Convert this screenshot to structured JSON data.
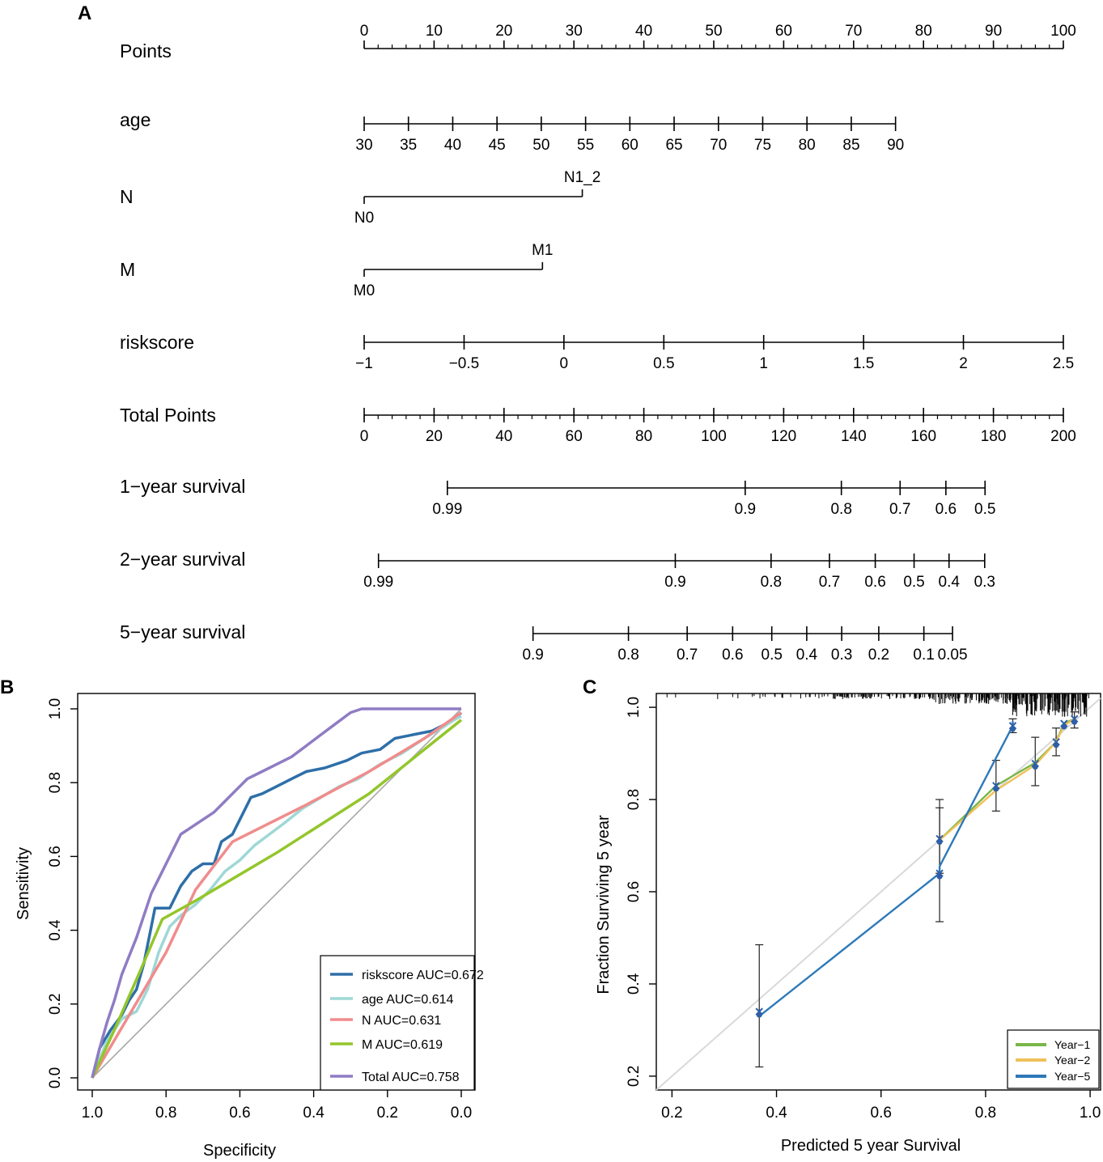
{
  "panels": {
    "A": "A",
    "B": "B",
    "C": "C"
  },
  "chart_data": [
    {
      "type": "nomogram",
      "panel": "A",
      "rows": [
        {
          "label": "Points",
          "scale": "points",
          "ticks": [
            "0",
            "10",
            "20",
            "30",
            "40",
            "50",
            "60",
            "70",
            "80",
            "90",
            "100"
          ],
          "minor_step": 2,
          "tick_position": "above"
        },
        {
          "label": "age",
          "ticks": [
            "30",
            "35",
            "40",
            "45",
            "50",
            "55",
            "60",
            "65",
            "70",
            "75",
            "80",
            "85",
            "90"
          ],
          "tick_points": [
            0,
            6.33,
            12.67,
            19,
            25.33,
            31.67,
            38,
            44.33,
            50.67,
            57,
            63.33,
            69.67,
            76
          ],
          "tick_position": "below"
        },
        {
          "label": "N",
          "ticks": [
            "N0",
            "N1_2"
          ],
          "tick_points": [
            0,
            31.2
          ],
          "alternate": true
        },
        {
          "label": "M",
          "ticks": [
            "M0",
            "M1"
          ],
          "tick_points": [
            0,
            25.5
          ],
          "alternate": true
        },
        {
          "label": "riskscore",
          "ticks": [
            "−1",
            "−0.5",
            "0",
            "0.5",
            "1",
            "1.5",
            "2",
            "2.5"
          ],
          "tick_points": [
            0,
            14.29,
            28.57,
            42.86,
            57.14,
            71.43,
            85.71,
            100
          ],
          "tick_position": "below"
        },
        {
          "label": "Total Points",
          "scale": "total",
          "ticks": [
            "0",
            "20",
            "40",
            "60",
            "80",
            "100",
            "120",
            "140",
            "160",
            "180",
            "200"
          ],
          "minor_step": 4,
          "tick_position": "below"
        },
        {
          "label": "1−year survival",
          "ticks": [
            "0.99",
            "0.9",
            "0.8",
            "0.7",
            "0.6",
            "0.5"
          ],
          "tick_total_points": [
            23.8,
            109,
            136.5,
            153.3,
            166.4,
            177.6
          ]
        },
        {
          "label": "2−year survival",
          "ticks": [
            "0.99",
            "0.9",
            "0.8",
            "0.7",
            "0.6",
            "0.5",
            "0.4",
            "0.3"
          ],
          "tick_total_points": [
            4.1,
            89,
            116.4,
            133.1,
            146.2,
            157.3,
            167.3,
            177.5
          ]
        },
        {
          "label": "5−year survival",
          "ticks": [
            "0.9",
            "0.8",
            "0.7",
            "0.6",
            "0.5",
            "0.4",
            "0.3",
            "0.2",
            "0.1",
            "0.05"
          ],
          "tick_total_points": [
            48.3,
            75.6,
            92.4,
            105.4,
            116.6,
            126.6,
            136.6,
            147.2,
            160.1,
            168.3
          ]
        }
      ]
    },
    {
      "type": "line",
      "panel": "B",
      "xlabel": "Specificity",
      "ylabel": "Sensitivity",
      "xlim": [
        1.0,
        0.0
      ],
      "ylim": [
        0.0,
        1.0
      ],
      "xticks": [
        "1.0",
        "0.8",
        "0.6",
        "0.4",
        "0.2",
        "0.0"
      ],
      "yticks": [
        "0.0",
        "0.2",
        "0.4",
        "0.6",
        "0.8",
        "1.0"
      ],
      "legend_position": "bottom-right",
      "diagonal": true,
      "series": [
        {
          "name": "riskscore AUC=0.672",
          "color": "#2e6fa8",
          "points": [
            [
              1,
              0
            ],
            [
              0.98,
              0.08
            ],
            [
              0.95,
              0.13
            ],
            [
              0.92,
              0.17
            ],
            [
              0.9,
              0.21
            ],
            [
              0.88,
              0.24
            ],
            [
              0.86,
              0.31
            ],
            [
              0.84,
              0.41
            ],
            [
              0.83,
              0.46
            ],
            [
              0.79,
              0.46
            ],
            [
              0.76,
              0.52
            ],
            [
              0.73,
              0.56
            ],
            [
              0.7,
              0.58
            ],
            [
              0.67,
              0.58
            ],
            [
              0.65,
              0.64
            ],
            [
              0.62,
              0.66
            ],
            [
              0.6,
              0.7
            ],
            [
              0.57,
              0.76
            ],
            [
              0.54,
              0.77
            ],
            [
              0.5,
              0.79
            ],
            [
              0.46,
              0.81
            ],
            [
              0.42,
              0.83
            ],
            [
              0.37,
              0.84
            ],
            [
              0.31,
              0.86
            ],
            [
              0.27,
              0.88
            ],
            [
              0.22,
              0.89
            ],
            [
              0.18,
              0.92
            ],
            [
              0.13,
              0.93
            ],
            [
              0.08,
              0.94
            ],
            [
              0.04,
              0.96
            ],
            [
              0.02,
              0.97
            ],
            [
              0,
              0.99
            ]
          ]
        },
        {
          "name": "age AUC=0.614",
          "color": "#9ed8d6",
          "points": [
            [
              1,
              0
            ],
            [
              0.96,
              0.1
            ],
            [
              0.92,
              0.16
            ],
            [
              0.88,
              0.18
            ],
            [
              0.85,
              0.24
            ],
            [
              0.82,
              0.34
            ],
            [
              0.79,
              0.41
            ],
            [
              0.76,
              0.44
            ],
            [
              0.72,
              0.47
            ],
            [
              0.68,
              0.51
            ],
            [
              0.64,
              0.56
            ],
            [
              0.6,
              0.59
            ],
            [
              0.56,
              0.63
            ],
            [
              0.52,
              0.66
            ],
            [
              0.48,
              0.69
            ],
            [
              0.43,
              0.73
            ],
            [
              0.38,
              0.76
            ],
            [
              0.33,
              0.79
            ],
            [
              0.28,
              0.81
            ],
            [
              0.22,
              0.85
            ],
            [
              0.16,
              0.88
            ],
            [
              0.1,
              0.92
            ],
            [
              0.05,
              0.95
            ],
            [
              0.02,
              0.97
            ],
            [
              0,
              0.98
            ]
          ]
        },
        {
          "name": "N AUC=0.631",
          "color": "#f08c8c",
          "points": [
            [
              1,
              0
            ],
            [
              0.9,
              0.17
            ],
            [
              0.8,
              0.34
            ],
            [
              0.72,
              0.51
            ],
            [
              0.62,
              0.64
            ],
            [
              0.42,
              0.74
            ],
            [
              0.25,
              0.83
            ],
            [
              0.1,
              0.92
            ],
            [
              0,
              0.99
            ]
          ]
        },
        {
          "name": "M AUC=0.619",
          "color": "#93c62b",
          "points": [
            [
              1,
              0
            ],
            [
              0.94,
              0.13
            ],
            [
              0.87,
              0.29
            ],
            [
              0.81,
              0.43
            ],
            [
              0.72,
              0.48
            ],
            [
              0.5,
              0.61
            ],
            [
              0.25,
              0.77
            ],
            [
              0,
              0.97
            ]
          ]
        },
        {
          "name": "Total AUC=0.758",
          "color": "#8f7cc4",
          "points": [
            [
              1,
              0
            ],
            [
              0.98,
              0.08
            ],
            [
              0.96,
              0.15
            ],
            [
              0.94,
              0.21
            ],
            [
              0.92,
              0.28
            ],
            [
              0.9,
              0.33
            ],
            [
              0.88,
              0.38
            ],
            [
              0.86,
              0.44
            ],
            [
              0.84,
              0.5
            ],
            [
              0.82,
              0.54
            ],
            [
              0.8,
              0.58
            ],
            [
              0.78,
              0.62
            ],
            [
              0.76,
              0.66
            ],
            [
              0.73,
              0.68
            ],
            [
              0.7,
              0.7
            ],
            [
              0.67,
              0.72
            ],
            [
              0.64,
              0.75
            ],
            [
              0.61,
              0.78
            ],
            [
              0.58,
              0.81
            ],
            [
              0.54,
              0.83
            ],
            [
              0.5,
              0.85
            ],
            [
              0.46,
              0.87
            ],
            [
              0.42,
              0.9
            ],
            [
              0.38,
              0.93
            ],
            [
              0.34,
              0.96
            ],
            [
              0.3,
              0.99
            ],
            [
              0.27,
              1.0
            ],
            [
              0,
              1.0
            ]
          ]
        }
      ]
    },
    {
      "type": "line",
      "panel": "C",
      "xlabel": "Predicted  5 year Survival",
      "ylabel": "Fraction Surviving 5 year",
      "xlim": [
        0.17,
        1.02
      ],
      "ylim": [
        0.17,
        1.03
      ],
      "xticks": [
        "0.2",
        "0.4",
        "0.6",
        "0.8",
        "1.0"
      ],
      "yticks": [
        "0.2",
        "0.4",
        "0.6",
        "0.8",
        "1.0"
      ],
      "legend_position": "bottom-right",
      "diagonal": true,
      "series": [
        {
          "name": "Year−1",
          "color": "#7ab648",
          "points": [
            [
              0.71,
              0.71
            ],
            [
              0.82,
              0.83
            ],
            [
              0.895,
              0.88
            ],
            [
              0.935,
              0.925
            ],
            [
              0.95,
              0.965
            ],
            [
              0.97,
              0.975
            ]
          ]
        },
        {
          "name": "Year−2",
          "color": "#f0c15a",
          "points": [
            [
              0.71,
              0.71
            ],
            [
              0.82,
              0.82
            ],
            [
              0.895,
              0.875
            ],
            [
              0.935,
              0.925
            ],
            [
              0.95,
              0.96
            ],
            [
              0.97,
              0.975
            ]
          ]
        },
        {
          "name": "Year−5",
          "color": "#2e79b8",
          "points": [
            [
              0.367,
              0.33
            ],
            [
              0.712,
              0.64
            ],
            [
              0.712,
              0.655
            ],
            [
              0.852,
              0.96
            ],
            [
              0.852,
              0.97
            ]
          ]
        }
      ],
      "markers": [
        [
          0.367,
          0.34
        ],
        [
          0.712,
          0.64
        ],
        [
          0.712,
          0.715
        ],
        [
          0.82,
          0.83
        ],
        [
          0.852,
          0.96
        ],
        [
          0.895,
          0.878
        ],
        [
          0.935,
          0.925
        ],
        [
          0.95,
          0.965
        ],
        [
          0.97,
          0.975
        ]
      ],
      "error_bars": [
        {
          "x": 0.367,
          "low": 0.22,
          "high": 0.485
        },
        {
          "x": 0.712,
          "low": 0.535,
          "high": 0.782
        },
        {
          "x": 0.712,
          "low": 0.64,
          "high": 0.8
        },
        {
          "x": 0.82,
          "low": 0.775,
          "high": 0.885
        },
        {
          "x": 0.852,
          "low": 0.945,
          "high": 0.975
        },
        {
          "x": 0.895,
          "low": 0.83,
          "high": 0.935
        },
        {
          "x": 0.935,
          "low": 0.895,
          "high": 0.955
        },
        {
          "x": 0.97,
          "low": 0.955,
          "high": 0.99
        }
      ],
      "rug_density": "x values of predicted survival, dense near 0.9–1.0"
    }
  ]
}
